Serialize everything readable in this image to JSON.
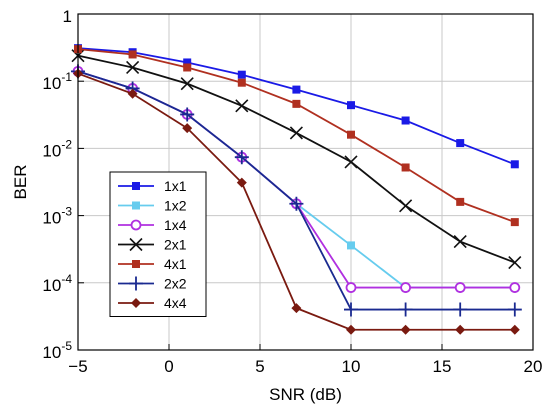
{
  "chart_data": {
    "type": "line",
    "xlabel": "SNR (dB)",
    "ylabel": "BER",
    "x_scale": "linear",
    "y_scale": "log",
    "xlim": [
      -5,
      20
    ],
    "ylim": [
      1e-05,
      1
    ],
    "x_ticks": [
      -5,
      0,
      5,
      10,
      15,
      20
    ],
    "x_tick_labels": [
      "−5",
      "0",
      "5",
      "10",
      "15",
      "20"
    ],
    "y_ticks": [
      1,
      0.1,
      0.01,
      0.001,
      0.0001,
      1e-05
    ],
    "y_tick_labels": [
      {
        "base": "1",
        "exp": ""
      },
      {
        "base": "10",
        "exp": "-1"
      },
      {
        "base": "10",
        "exp": "-2"
      },
      {
        "base": "10",
        "exp": "-3"
      },
      {
        "base": "10",
        "exp": "-4"
      },
      {
        "base": "10",
        "exp": "-5"
      }
    ],
    "grid": true,
    "legend_position": "bottom-left",
    "series": [
      {
        "name": "1x1",
        "color": "#1a1ae6",
        "marker": "square",
        "x": [
          -5,
          -2,
          1,
          4,
          7,
          10,
          13,
          16,
          19
        ],
        "y": [
          0.31,
          0.27,
          0.19,
          0.125,
          0.075,
          0.044,
          0.026,
          0.012,
          0.0058
        ]
      },
      {
        "name": "1x2",
        "color": "#66ccee",
        "marker": "square",
        "x": [
          -5,
          -2,
          1,
          4,
          7,
          10,
          13,
          16,
          19
        ],
        "y": [
          0.14,
          0.078,
          0.032,
          0.0074,
          0.0015,
          0.00036,
          8.5e-05,
          8.5e-05,
          8.5e-05
        ]
      },
      {
        "name": "1x4",
        "color": "#b030e0",
        "marker": "circle",
        "x": [
          -5,
          -2,
          1,
          4,
          7,
          10,
          13,
          16,
          19
        ],
        "y": [
          0.14,
          0.078,
          0.032,
          0.0074,
          0.0015,
          8.5e-05,
          8.5e-05,
          8.5e-05,
          8.5e-05
        ]
      },
      {
        "name": "2x1",
        "color": "#111111",
        "marker": "x",
        "x": [
          -5,
          -2,
          1,
          4,
          7,
          10,
          13,
          16,
          19
        ],
        "y": [
          0.24,
          0.16,
          0.092,
          0.043,
          0.017,
          0.0063,
          0.0014,
          0.00041,
          0.0002
        ]
      },
      {
        "name": "4x1",
        "color": "#b03020",
        "marker": "square",
        "x": [
          -5,
          -2,
          1,
          4,
          7,
          10,
          13,
          16,
          19
        ],
        "y": [
          0.3,
          0.25,
          0.16,
          0.095,
          0.046,
          0.016,
          0.0052,
          0.0016,
          0.0008
        ]
      },
      {
        "name": "2x2",
        "color": "#1a2a90",
        "marker": "plus",
        "x": [
          -5,
          -2,
          1,
          4,
          7,
          10,
          13,
          16,
          19
        ],
        "y": [
          0.14,
          0.078,
          0.032,
          0.0074,
          0.0015,
          4e-05,
          4e-05,
          4e-05,
          4e-05
        ]
      },
      {
        "name": "4x4",
        "color": "#7a1a10",
        "marker": "diamond",
        "x": [
          -5,
          -2,
          1,
          4,
          7,
          10,
          13,
          16,
          19
        ],
        "y": [
          0.13,
          0.065,
          0.02,
          0.0031,
          4.2e-05,
          2e-05,
          2e-05,
          2e-05,
          2e-05
        ]
      }
    ]
  }
}
